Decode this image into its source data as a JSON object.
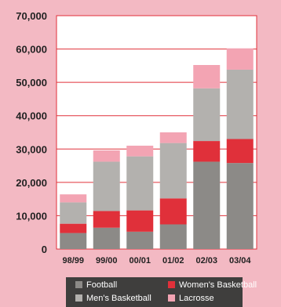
{
  "chart_data": {
    "type": "bar",
    "stacked": true,
    "categories": [
      "98/99",
      "99/00",
      "00/01",
      "01/02",
      "02/03",
      "03/04"
    ],
    "series": [
      {
        "name": "Football",
        "values": [
          4800,
          6400,
          5200,
          7400,
          26200,
          25800
        ]
      },
      {
        "name": "Women's Basketball",
        "values": [
          2800,
          5000,
          6400,
          7800,
          6200,
          7200
        ]
      },
      {
        "name": "Men's Basketball",
        "values": [
          6400,
          14800,
          16200,
          16600,
          15800,
          20800
        ]
      },
      {
        "name": "Lacrosse",
        "values": [
          2400,
          3400,
          3200,
          3200,
          7000,
          6400
        ]
      }
    ],
    "colors": [
      "#8c8a87",
      "#e0303a",
      "#b3b1ae",
      "#f3a4b3"
    ],
    "yticks": [
      "0",
      "10,000",
      "20,000",
      "30,000",
      "40,000",
      "50,000",
      "60,000",
      "70,000"
    ],
    "ylim": [
      0,
      70000
    ],
    "grid": true,
    "legend_position": "bottom",
    "title": "",
    "xlabel": "",
    "ylabel": ""
  }
}
